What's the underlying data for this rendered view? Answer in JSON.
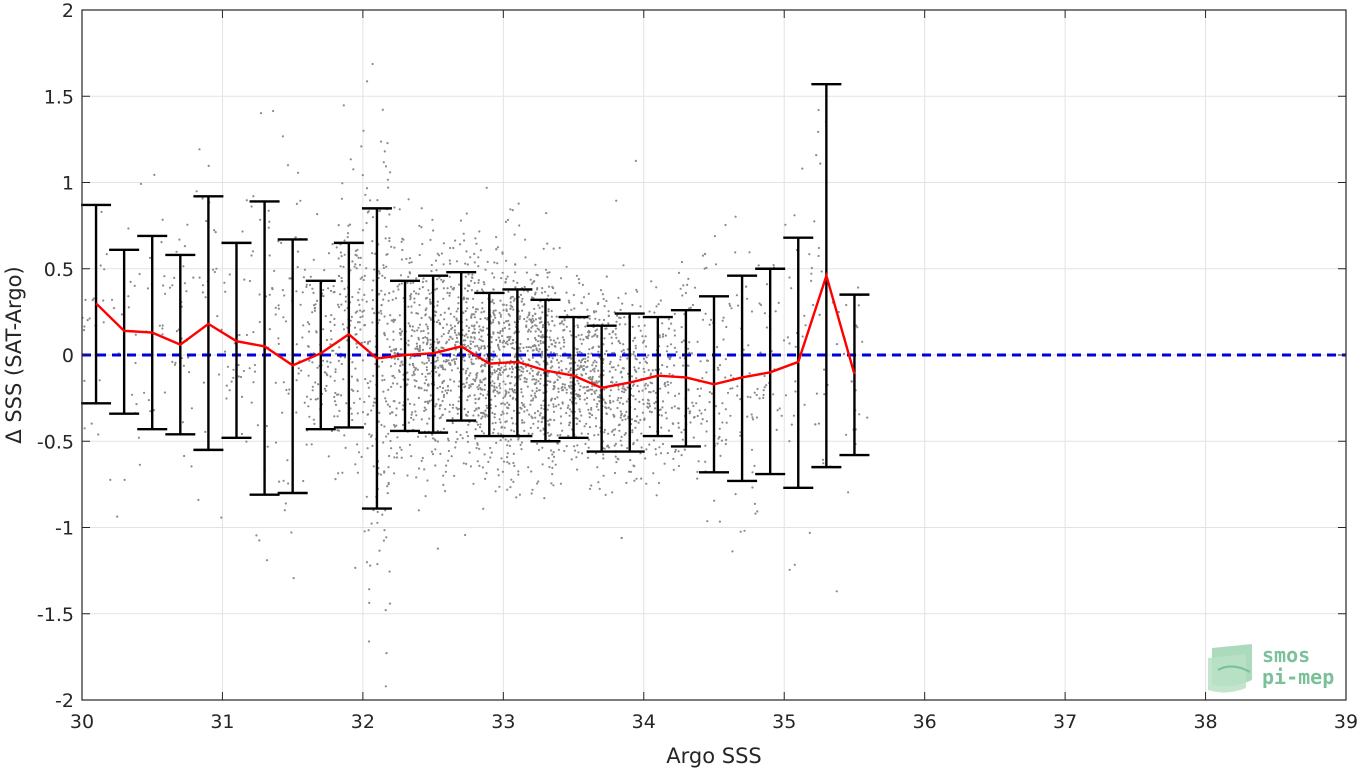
{
  "chart_data": {
    "type": "scatter",
    "xlabel": "Argo SSS",
    "ylabel": "Δ SSS (SAT-Argo)",
    "xlim": [
      30,
      39
    ],
    "ylim": [
      -2,
      2
    ],
    "xticks": [
      "30",
      "31",
      "32",
      "33",
      "34",
      "35",
      "36",
      "37",
      "38",
      "39"
    ],
    "yticks": [
      "-2",
      "-1.5",
      "-1",
      "-0.5",
      "0",
      "0.5",
      "1",
      "1.5",
      "2"
    ],
    "grid": true,
    "series": [
      {
        "role": "binned mean with ±std error bars",
        "color": "#ff0000",
        "errorbar_color": "#000000",
        "x": [
          30.1,
          30.3,
          30.5,
          30.7,
          30.9,
          31.1,
          31.3,
          31.5,
          31.7,
          31.9,
          32.1,
          32.3,
          32.5,
          32.7,
          32.9,
          33.1,
          33.3,
          33.5,
          33.7,
          33.9,
          34.1,
          34.3,
          34.5,
          34.7,
          34.9,
          35.1,
          35.3,
          35.5
        ],
        "mean": [
          0.3,
          0.14,
          0.13,
          0.06,
          0.18,
          0.08,
          0.05,
          -0.06,
          0.01,
          0.12,
          -0.02,
          0.0,
          0.01,
          0.05,
          -0.05,
          -0.04,
          -0.09,
          -0.12,
          -0.19,
          -0.16,
          -0.12,
          -0.13,
          -0.17,
          -0.13,
          -0.1,
          -0.04,
          0.46,
          -0.11
        ],
        "lower": [
          -0.28,
          -0.34,
          -0.43,
          -0.46,
          -0.55,
          -0.48,
          -0.81,
          -0.8,
          -0.43,
          -0.42,
          -0.89,
          -0.44,
          -0.45,
          -0.38,
          -0.47,
          -0.47,
          -0.5,
          -0.48,
          -0.56,
          -0.56,
          -0.47,
          -0.53,
          -0.68,
          -0.73,
          -0.69,
          -0.77,
          -0.65,
          -0.58
        ],
        "upper": [
          0.87,
          0.61,
          0.69,
          0.58,
          0.92,
          0.65,
          0.89,
          0.67,
          0.43,
          0.65,
          0.85,
          0.43,
          0.46,
          0.48,
          0.36,
          0.38,
          0.32,
          0.22,
          0.17,
          0.24,
          0.22,
          0.26,
          0.34,
          0.46,
          0.5,
          0.68,
          1.57,
          0.35
        ]
      },
      {
        "role": "zero reference",
        "style": "dashed",
        "color": "#0000dd",
        "x": [
          30,
          39
        ],
        "y": [
          0,
          0
        ]
      },
      {
        "role": "individual match-up points",
        "color": "#8a8a8a",
        "note_points": "dense grey point cloud centred near x≈33, y≈0, spread ±0.5 (std ≈0.35), spanning x 30–35.6"
      }
    ]
  },
  "logo": {
    "line1": "smos",
    "line2": "pi-mep"
  }
}
